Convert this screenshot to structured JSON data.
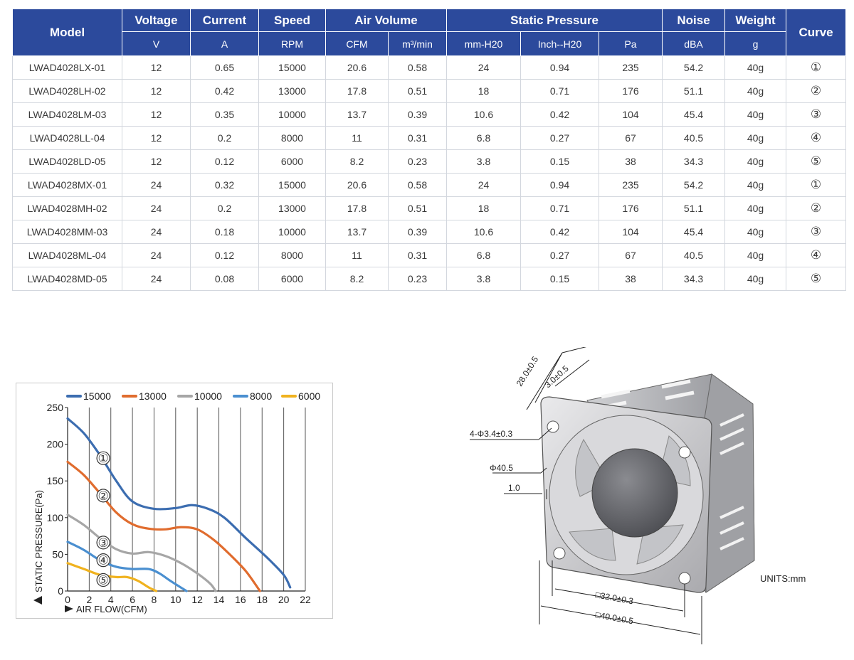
{
  "table": {
    "header_top": {
      "model": "Model",
      "voltage": "Voltage",
      "current": "Current",
      "speed": "Speed",
      "air_volume": "Air Volume",
      "static_pressure": "Static Pressure",
      "noise": "Noise",
      "weight": "Weight",
      "curve": "Curve"
    },
    "header_units": [
      "V",
      "A",
      "RPM",
      "CFM",
      "m³/min",
      "mm-H20",
      "Inch--H20",
      "Pa",
      "dBA",
      "g"
    ],
    "rows": [
      [
        "LWAD4028LX-01",
        "12",
        "0.65",
        "15000",
        "20.6",
        "0.58",
        "24",
        "0.94",
        "235",
        "54.2",
        "40g",
        "①"
      ],
      [
        "LWAD4028LH-02",
        "12",
        "0.42",
        "13000",
        "17.8",
        "0.51",
        "18",
        "0.71",
        "176",
        "51.1",
        "40g",
        "②"
      ],
      [
        "LWAD4028LM-03",
        "12",
        "0.35",
        "10000",
        "13.7",
        "0.39",
        "10.6",
        "0.42",
        "104",
        "45.4",
        "40g",
        "③"
      ],
      [
        "LWAD4028LL-04",
        "12",
        "0.2",
        "8000",
        "11",
        "0.31",
        "6.8",
        "0.27",
        "67",
        "40.5",
        "40g",
        "④"
      ],
      [
        "LWAD4028LD-05",
        "12",
        "0.12",
        "6000",
        "8.2",
        "0.23",
        "3.8",
        "0.15",
        "38",
        "34.3",
        "40g",
        "⑤"
      ],
      [
        "LWAD4028MX-01",
        "24",
        "0.32",
        "15000",
        "20.6",
        "0.58",
        "24",
        "0.94",
        "235",
        "54.2",
        "40g",
        "①"
      ],
      [
        "LWAD4028MH-02",
        "24",
        "0.2",
        "13000",
        "17.8",
        "0.51",
        "18",
        "0.71",
        "176",
        "51.1",
        "40g",
        "②"
      ],
      [
        "LWAD4028MM-03",
        "24",
        "0.18",
        "10000",
        "13.7",
        "0.39",
        "10.6",
        "0.42",
        "104",
        "45.4",
        "40g",
        "③"
      ],
      [
        "LWAD4028ML-04",
        "24",
        "0.12",
        "8000",
        "11",
        "0.31",
        "6.8",
        "0.27",
        "67",
        "40.5",
        "40g",
        "④"
      ],
      [
        "LWAD4028MD-05",
        "24",
        "0.08",
        "6000",
        "8.2",
        "0.23",
        "3.8",
        "0.15",
        "38",
        "34.3",
        "40g",
        "⑤"
      ]
    ]
  },
  "chart_data": {
    "type": "line",
    "title": "",
    "xlabel": "AIR FLOW(CFM)",
    "ylabel": "STATIC PRESSURE(Pa)",
    "xlim": [
      0,
      22
    ],
    "ylim": [
      0,
      250
    ],
    "x_ticks": [
      0,
      2,
      4,
      6,
      8,
      10,
      12,
      14,
      16,
      18,
      20,
      22
    ],
    "y_ticks": [
      0,
      50,
      100,
      150,
      200,
      250
    ],
    "grid": "vertical",
    "legend_position": "top",
    "series": [
      {
        "name": "15000",
        "color": "#3c6db0",
        "label": "①",
        "label_point": [
          3.3,
          181
        ],
        "points": [
          [
            0,
            235
          ],
          [
            1.5,
            215
          ],
          [
            3,
            185
          ],
          [
            4.5,
            150
          ],
          [
            6,
            122
          ],
          [
            8,
            112
          ],
          [
            10,
            113
          ],
          [
            11.5,
            117
          ],
          [
            13,
            112
          ],
          [
            14.5,
            100
          ],
          [
            16.5,
            72
          ],
          [
            18.5,
            45
          ],
          [
            20,
            22
          ],
          [
            20.6,
            5
          ]
        ]
      },
      {
        "name": "13000",
        "color": "#e06c2e",
        "label": "②",
        "label_point": [
          3.3,
          130
        ],
        "points": [
          [
            0,
            176
          ],
          [
            1.5,
            158
          ],
          [
            3,
            133
          ],
          [
            4.5,
            107
          ],
          [
            6,
            91
          ],
          [
            7.5,
            85
          ],
          [
            9,
            84
          ],
          [
            10.5,
            87
          ],
          [
            12,
            84
          ],
          [
            13.5,
            70
          ],
          [
            15,
            50
          ],
          [
            16.5,
            27
          ],
          [
            17.8,
            0
          ]
        ]
      },
      {
        "name": "10000",
        "color": "#a6a6a6",
        "label": "③",
        "label_point": [
          3.3,
          66
        ],
        "points": [
          [
            0,
            104
          ],
          [
            1.5,
            90
          ],
          [
            3,
            72
          ],
          [
            4.5,
            57
          ],
          [
            6,
            51
          ],
          [
            7.5,
            53
          ],
          [
            9,
            48
          ],
          [
            10.5,
            38
          ],
          [
            12,
            24
          ],
          [
            13.2,
            10
          ],
          [
            13.7,
            0
          ]
        ]
      },
      {
        "name": "8000",
        "color": "#4a8fd0",
        "label": "④",
        "label_point": [
          3.3,
          42
        ],
        "points": [
          [
            0,
            67
          ],
          [
            1.5,
            56
          ],
          [
            3,
            42
          ],
          [
            4.5,
            33
          ],
          [
            6,
            30
          ],
          [
            7.5,
            30
          ],
          [
            8.5,
            24
          ],
          [
            9.5,
            14
          ],
          [
            11,
            0
          ]
        ]
      },
      {
        "name": "6000",
        "color": "#f0b21e",
        "label": "⑤",
        "label_point": [
          3.3,
          15
        ],
        "points": [
          [
            0,
            38
          ],
          [
            1.5,
            30
          ],
          [
            3,
            22
          ],
          [
            4.5,
            19
          ],
          [
            5.5,
            19
          ],
          [
            6.5,
            14
          ],
          [
            7.5,
            5
          ],
          [
            8.2,
            0
          ]
        ]
      }
    ]
  },
  "drawing": {
    "dims": {
      "d28": "28.0±0.5",
      "d3": "3.0±0.5",
      "holes": "4-Φ3.4±0.3",
      "phi": "Φ40.5",
      "d1": "1.0",
      "d32": "□32.0±0.3",
      "d40": "□40.0±0.5"
    },
    "units": "UNITS:mm"
  }
}
